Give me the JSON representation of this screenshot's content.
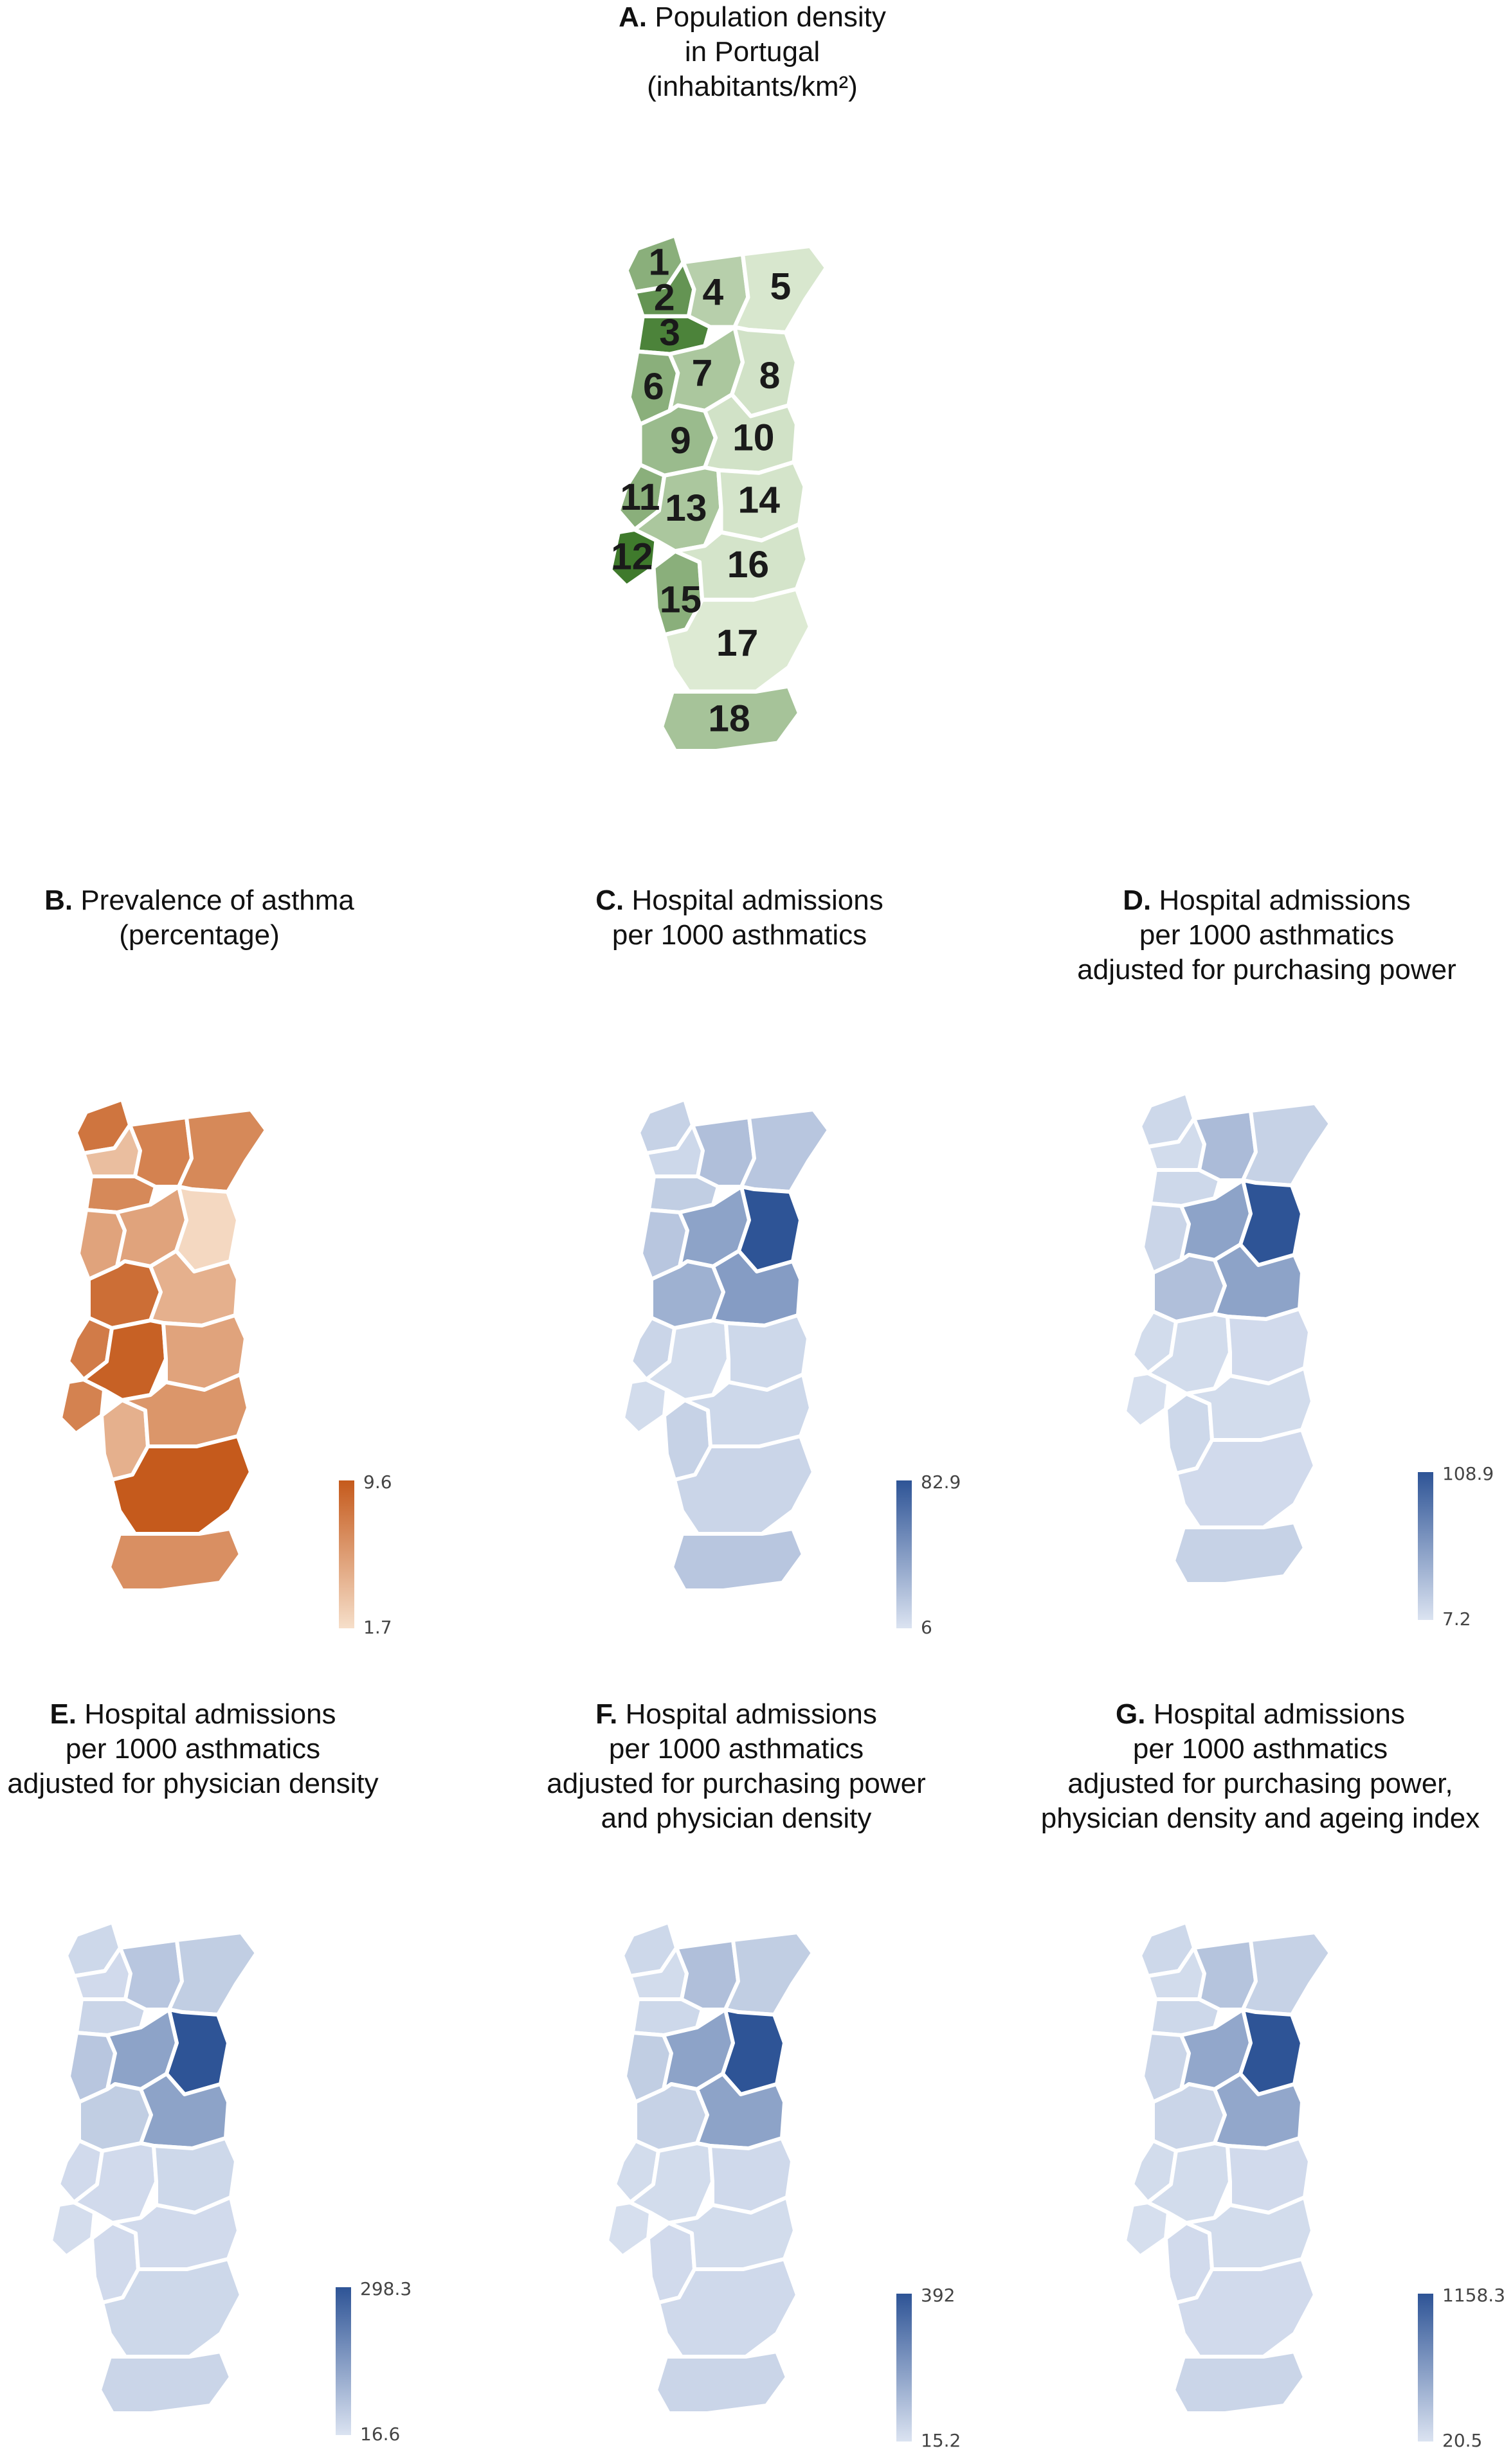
{
  "district_ids": [
    "1",
    "2",
    "3",
    "4",
    "5",
    "6",
    "7",
    "8",
    "9",
    "10",
    "11",
    "12",
    "13",
    "14",
    "15",
    "16",
    "17",
    "18"
  ],
  "panels": [
    {
      "id": "A",
      "letter": "A.",
      "title_lines": [
        "Population density",
        "in Portugal",
        "(inhabitants/km²)"
      ],
      "show_labels": true,
      "legend": null,
      "values": {
        "1": 0.55,
        "2": 0.78,
        "3": 0.92,
        "4": 0.28,
        "5": 0.08,
        "6": 0.55,
        "7": 0.35,
        "8": 0.12,
        "9": 0.45,
        "10": 0.12,
        "11": 0.55,
        "12": 1.0,
        "13": 0.35,
        "14": 0.1,
        "15": 0.55,
        "16": 0.1,
        "17": 0.05,
        "18": 0.38
      },
      "color_low": "#e5f0dc",
      "color_high": "#3f7a2c"
    },
    {
      "id": "B",
      "letter": "B.",
      "title_lines": [
        "Prevalence of asthma",
        "(percentage)"
      ],
      "show_labels": false,
      "legend": {
        "max": "9.6",
        "min": "1.7"
      },
      "values": {
        "1": 0.8,
        "2": 0.25,
        "3": 0.65,
        "4": 0.7,
        "5": 0.65,
        "6": 0.45,
        "7": 0.45,
        "8": 0.05,
        "9": 0.85,
        "10": 0.35,
        "11": 0.75,
        "12": 0.7,
        "13": 0.95,
        "14": 0.45,
        "15": 0.35,
        "16": 0.55,
        "17": 1.0,
        "18": 0.6
      },
      "color_low": "#f6dfca",
      "color_high": "#c55a1c"
    },
    {
      "id": "C",
      "letter": "C.",
      "title_lines": [
        "Hospital admissions",
        "per 1000 asthmatics"
      ],
      "show_labels": false,
      "legend": {
        "max": "82.9",
        "min": "6"
      },
      "values": {
        "1": 0.12,
        "2": 0.08,
        "3": 0.15,
        "4": 0.25,
        "5": 0.2,
        "6": 0.2,
        "7": 0.45,
        "8": 1.0,
        "9": 0.35,
        "10": 0.5,
        "11": 0.1,
        "12": 0.05,
        "13": 0.05,
        "14": 0.08,
        "15": 0.12,
        "16": 0.08,
        "17": 0.1,
        "18": 0.2
      },
      "color_low": "#dbe3f1",
      "color_high": "#2e5496"
    },
    {
      "id": "D",
      "letter": "D.",
      "title_lines": [
        "Hospital admissions",
        "per 1000 asthmatics",
        "adjusted for purchasing power"
      ],
      "show_labels": false,
      "legend": {
        "max": "108.9",
        "min": "7.2"
      },
      "values": {
        "1": 0.08,
        "2": 0.05,
        "3": 0.08,
        "4": 0.28,
        "5": 0.12,
        "6": 0.1,
        "7": 0.45,
        "8": 1.0,
        "9": 0.25,
        "10": 0.45,
        "11": 0.05,
        "12": 0.03,
        "13": 0.05,
        "14": 0.06,
        "15": 0.08,
        "16": 0.05,
        "17": 0.06,
        "18": 0.12
      },
      "color_low": "#dbe3f1",
      "color_high": "#2e5496"
    },
    {
      "id": "E",
      "letter": "E.",
      "title_lines": [
        "Hospital admissions",
        "per 1000 asthmatics",
        "adjusted for physician density"
      ],
      "show_labels": false,
      "legend": {
        "max": "298.3",
        "min": "16.6"
      },
      "values": {
        "1": 0.08,
        "2": 0.06,
        "3": 0.1,
        "4": 0.2,
        "5": 0.15,
        "6": 0.2,
        "7": 0.45,
        "8": 1.0,
        "9": 0.15,
        "10": 0.45,
        "11": 0.06,
        "12": 0.04,
        "13": 0.06,
        "14": 0.08,
        "15": 0.06,
        "16": 0.06,
        "17": 0.08,
        "18": 0.1
      },
      "color_low": "#dbe3f1",
      "color_high": "#2e5496"
    },
    {
      "id": "F",
      "letter": "F.",
      "title_lines": [
        "Hospital admissions",
        "per 1000 asthmatics",
        "adjusted for purchasing power",
        "and physician density"
      ],
      "show_labels": false,
      "legend": {
        "max": "392",
        "min": "15.2"
      },
      "values": {
        "1": 0.08,
        "2": 0.05,
        "3": 0.08,
        "4": 0.25,
        "5": 0.15,
        "6": 0.15,
        "7": 0.45,
        "8": 1.0,
        "9": 0.12,
        "10": 0.45,
        "11": 0.05,
        "12": 0.03,
        "13": 0.05,
        "14": 0.07,
        "15": 0.06,
        "16": 0.05,
        "17": 0.07,
        "18": 0.1
      },
      "color_low": "#dbe3f1",
      "color_high": "#2e5496"
    },
    {
      "id": "G",
      "letter": "G.",
      "title_lines": [
        "Hospital admissions",
        "per 1000 asthmatics",
        "adjusted for purchasing power,",
        "physician density and ageing index"
      ],
      "show_labels": false,
      "legend": {
        "max": "1158.3",
        "min": "20.5"
      },
      "values": {
        "1": 0.08,
        "2": 0.05,
        "3": 0.08,
        "4": 0.22,
        "5": 0.12,
        "6": 0.1,
        "7": 0.42,
        "8": 1.0,
        "9": 0.1,
        "10": 0.42,
        "11": 0.05,
        "12": 0.03,
        "13": 0.05,
        "14": 0.06,
        "15": 0.06,
        "16": 0.05,
        "17": 0.06,
        "18": 0.1
      },
      "color_low": "#dbe3f1",
      "color_high": "#2e5496"
    }
  ]
}
